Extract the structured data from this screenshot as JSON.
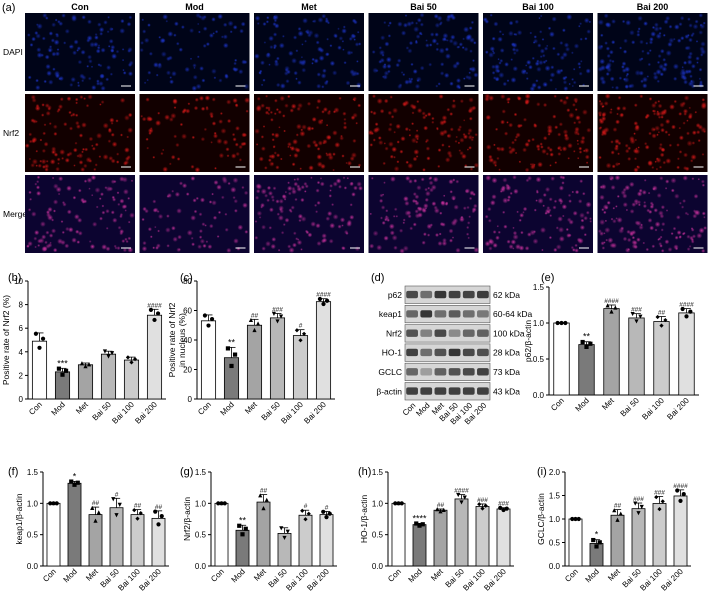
{
  "micrographs": {
    "panel_label": "(a)",
    "columns": [
      "Con",
      "Mod",
      "Met",
      "Bai 50",
      "Bai 100",
      "Bai 200"
    ],
    "rows": [
      {
        "label": "DAPI",
        "colors": [
          "#1c34c8",
          "#000418"
        ]
      },
      {
        "label": "Nrf2",
        "colors": [
          "#d81818",
          "#120000"
        ]
      },
      {
        "label": "Merge",
        "colors": [
          "#c8309c",
          "#0c0430"
        ]
      }
    ]
  },
  "western_blot": {
    "panel_label": "(d)",
    "proteins": [
      "p62",
      "keap1",
      "Nrf2",
      "HO-1",
      "GCLC",
      "β-actin"
    ],
    "sizes": [
      "62 kDa",
      "60-64 kDa",
      "100 kDa",
      "28 kDa",
      "73 kDa",
      "43 kDa"
    ],
    "lanes": [
      "Con",
      "Mod",
      "Met",
      "Bai 50",
      "Bai 100",
      "Bai 200"
    ]
  },
  "chart_data": [
    {
      "id": "b",
      "panel_label": "(b)",
      "type": "bar",
      "ylabel": "Positive rate of Nrf2 (%)",
      "ylim": [
        0,
        10
      ],
      "yticks": [
        0,
        2,
        4,
        6,
        8,
        10
      ],
      "categories": [
        "Con",
        "Mod",
        "Met",
        "Bai 50",
        "Bai 100",
        "Bai 200"
      ],
      "values": [
        4.9,
        2.3,
        2.9,
        3.8,
        3.3,
        7.1
      ],
      "errors": [
        0.7,
        0.3,
        0.15,
        0.25,
        0.25,
        0.5
      ],
      "annotations": [
        "",
        "***",
        "",
        "",
        "",
        "####"
      ]
    },
    {
      "id": "c",
      "panel_label": "(c)",
      "type": "bar",
      "ylabel": "Positive rate of Nrf2 in nucleus (%)",
      "ylim": [
        0,
        80
      ],
      "yticks": [
        0,
        20,
        40,
        60,
        80
      ],
      "categories": [
        "Con",
        "Mod",
        "Met",
        "Bai 50",
        "Bai 100",
        "Bai 200"
      ],
      "values": [
        53,
        28,
        50,
        55,
        43,
        66
      ],
      "errors": [
        4,
        7,
        4,
        3,
        4,
        2
      ],
      "annotations": [
        "",
        "**",
        "##",
        "###",
        "#",
        "####"
      ]
    },
    {
      "id": "e",
      "panel_label": "(e)",
      "type": "bar",
      "ylabel": "p62/β-actin",
      "ylim": [
        0,
        1.5
      ],
      "yticks": [
        0.0,
        0.5,
        1.0,
        1.5
      ],
      "categories": [
        "Con",
        "Mod",
        "Met",
        "Bai 50",
        "Bai 100",
        "Bai 200"
      ],
      "values": [
        1.0,
        0.7,
        1.2,
        1.07,
        1.02,
        1.14
      ],
      "errors": [
        0.0,
        0.04,
        0.05,
        0.06,
        0.07,
        0.06
      ],
      "annotations": [
        "",
        "**",
        "####",
        "###",
        "##",
        "####"
      ]
    },
    {
      "id": "f",
      "panel_label": "(f)",
      "type": "bar",
      "ylabel": "keap1/β-actin",
      "ylim": [
        0,
        1.5
      ],
      "yticks": [
        0.0,
        0.5,
        1.0,
        1.5
      ],
      "categories": [
        "Con",
        "Mod",
        "Met",
        "Bai 50",
        "Bai 100",
        "Bai 200"
      ],
      "values": [
        1.0,
        1.32,
        0.82,
        0.93,
        0.82,
        0.76
      ],
      "errors": [
        0.0,
        0.03,
        0.12,
        0.15,
        0.08,
        0.12
      ],
      "annotations": [
        "",
        "*",
        "##",
        "#",
        "##",
        "##"
      ]
    },
    {
      "id": "g",
      "panel_label": "(g)",
      "type": "bar",
      "ylabel": "Nrf2/β-actin",
      "ylim": [
        0,
        1.5
      ],
      "yticks": [
        0.0,
        0.5,
        1.0,
        1.5
      ],
      "categories": [
        "Con",
        "Mod",
        "Met",
        "Bai 50",
        "Bai 100",
        "Bai 200"
      ],
      "values": [
        1.0,
        0.57,
        1.02,
        0.52,
        0.81,
        0.82
      ],
      "errors": [
        0.0,
        0.08,
        0.12,
        0.09,
        0.08,
        0.05
      ],
      "annotations": [
        "",
        "**",
        "##",
        "",
        "#",
        "#"
      ]
    },
    {
      "id": "h",
      "panel_label": "(h)",
      "type": "bar",
      "ylabel": "HO-1/β-actin",
      "ylim": [
        0,
        1.5
      ],
      "yticks": [
        0.0,
        0.5,
        1.0,
        1.5
      ],
      "categories": [
        "Con",
        "Mod",
        "Met",
        "Bai 50",
        "Bai 100",
        "Bai 200"
      ],
      "values": [
        1.0,
        0.66,
        0.89,
        1.07,
        0.95,
        0.91
      ],
      "errors": [
        0.0,
        0.02,
        0.02,
        0.07,
        0.04,
        0.02
      ],
      "annotations": [
        "",
        "****",
        "##",
        "####",
        "###",
        "###"
      ]
    },
    {
      "id": "i",
      "panel_label": "(i)",
      "type": "bar",
      "ylabel": "GCLC/β-actin",
      "ylim": [
        0,
        2.0
      ],
      "yticks": [
        0.0,
        0.5,
        1.0,
        1.5,
        2.0
      ],
      "categories": [
        "Con",
        "Mod",
        "Met",
        "Bai 50",
        "Bai 100",
        "Bai 200"
      ],
      "values": [
        1.0,
        0.48,
        1.08,
        1.22,
        1.33,
        1.49
      ],
      "errors": [
        0.0,
        0.08,
        0.12,
        0.12,
        0.15,
        0.13
      ],
      "annotations": [
        "",
        "*",
        "##",
        "###",
        "###",
        "####"
      ]
    }
  ],
  "bar_colors": [
    "#ffffff",
    "#7a7a7a",
    "#a4a4a4",
    "#b8b8b8",
    "#cccccc",
    "#e0e0e0"
  ],
  "marker_shapes": [
    "circle",
    "square",
    "triangle",
    "triangle-down",
    "diamond",
    "circle"
  ]
}
